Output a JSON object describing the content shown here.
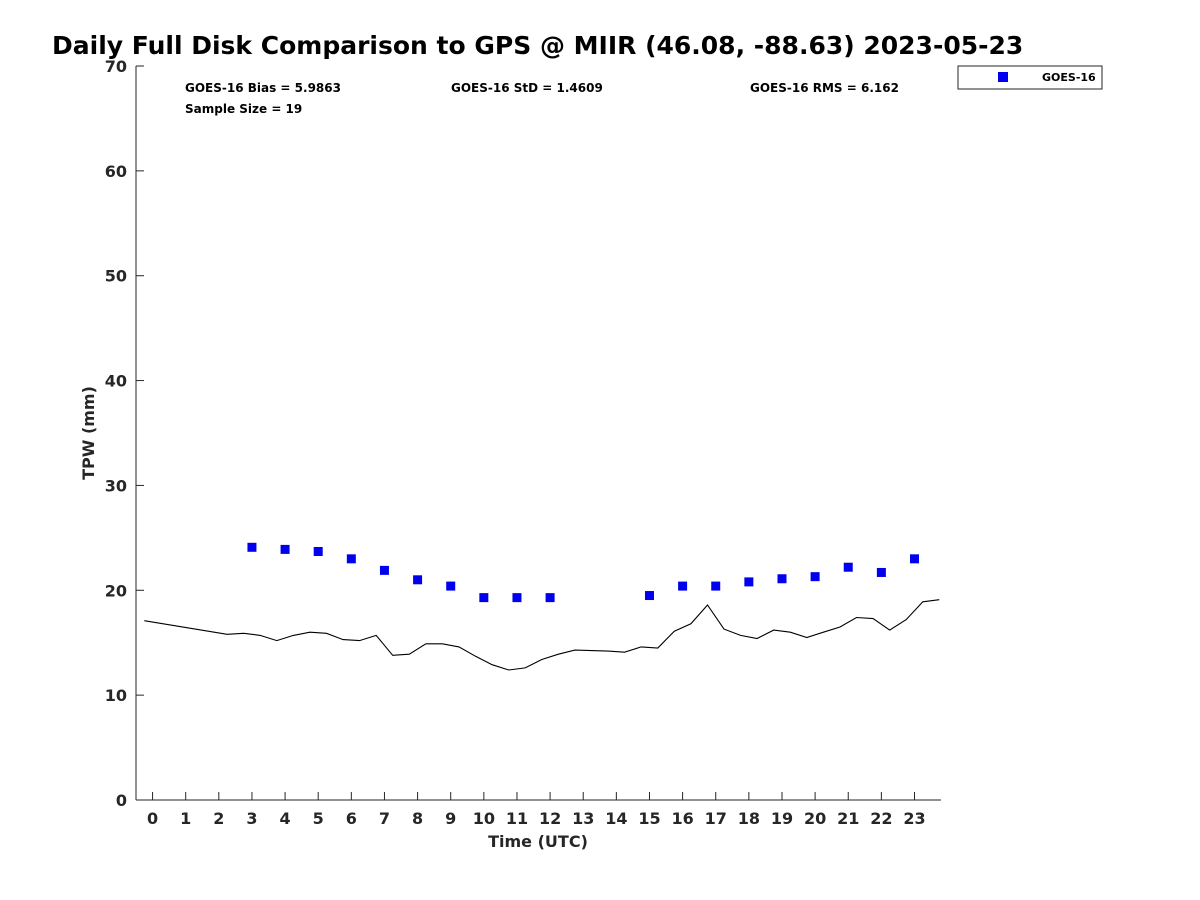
{
  "chart_data": {
    "type": "scatter",
    "title": "Daily Full Disk Comparison to GPS @ MIIR (46.08, -88.63) 2023-05-23",
    "xlabel": "Time (UTC)",
    "ylabel": "TPW (mm)",
    "xlim": [
      -0.5,
      23.8
    ],
    "ylim": [
      0,
      70
    ],
    "x_ticks": [
      0,
      1,
      2,
      3,
      4,
      5,
      6,
      7,
      8,
      9,
      10,
      11,
      12,
      13,
      14,
      15,
      16,
      17,
      18,
      19,
      20,
      21,
      22,
      23
    ],
    "y_ticks": [
      0,
      10,
      20,
      30,
      40,
      50,
      60,
      70
    ],
    "grid": false,
    "legend_position": "top-right",
    "stats": {
      "bias": "GOES-16 Bias = 5.9863",
      "std": "GOES-16 StD = 1.4609",
      "rms": "GOES-16 RMS = 6.162",
      "sample_size": "Sample Size = 19"
    },
    "series": [
      {
        "name": "GOES-16",
        "type": "scatter",
        "marker": "square",
        "color": "#0000ee",
        "x": [
          3,
          4,
          5,
          6,
          7,
          8,
          9,
          10,
          11,
          12,
          15,
          16,
          17,
          18,
          19,
          20,
          21,
          22,
          23
        ],
        "y": [
          24.1,
          23.9,
          23.7,
          23.0,
          21.9,
          21.0,
          20.4,
          19.3,
          19.3,
          19.3,
          19.5,
          20.4,
          20.4,
          20.8,
          21.1,
          21.3,
          22.2,
          21.7,
          23.0
        ]
      },
      {
        "type": "line",
        "color": "#000000",
        "x": [
          -0.25,
          2.25,
          2.75,
          3.25,
          3.75,
          4.25,
          4.75,
          5.25,
          5.75,
          6.25,
          6.75,
          7.25,
          7.75,
          8.25,
          8.75,
          9.25,
          9.75,
          10.25,
          10.75,
          11.25,
          11.75,
          12.25,
          12.75,
          13.75,
          14.25,
          14.75,
          15.25,
          15.75,
          16.25,
          16.75,
          17.25,
          17.75,
          18.25,
          18.75,
          19.25,
          19.75,
          20.25,
          20.75,
          21.25,
          21.75,
          22.25,
          22.75,
          23.25,
          23.75
        ],
        "y": [
          17.1,
          15.8,
          15.9,
          15.7,
          15.2,
          15.7,
          16.0,
          15.9,
          15.3,
          15.2,
          15.7,
          13.8,
          13.9,
          14.9,
          14.9,
          14.6,
          13.7,
          12.9,
          12.4,
          12.6,
          13.4,
          13.9,
          14.3,
          14.2,
          14.1,
          14.6,
          14.5,
          16.1,
          16.8,
          18.6,
          16.3,
          15.7,
          15.4,
          16.2,
          16.0,
          15.5,
          16.0,
          16.5,
          17.4,
          17.3,
          16.2,
          17.2,
          18.9,
          19.1
        ]
      }
    ]
  }
}
